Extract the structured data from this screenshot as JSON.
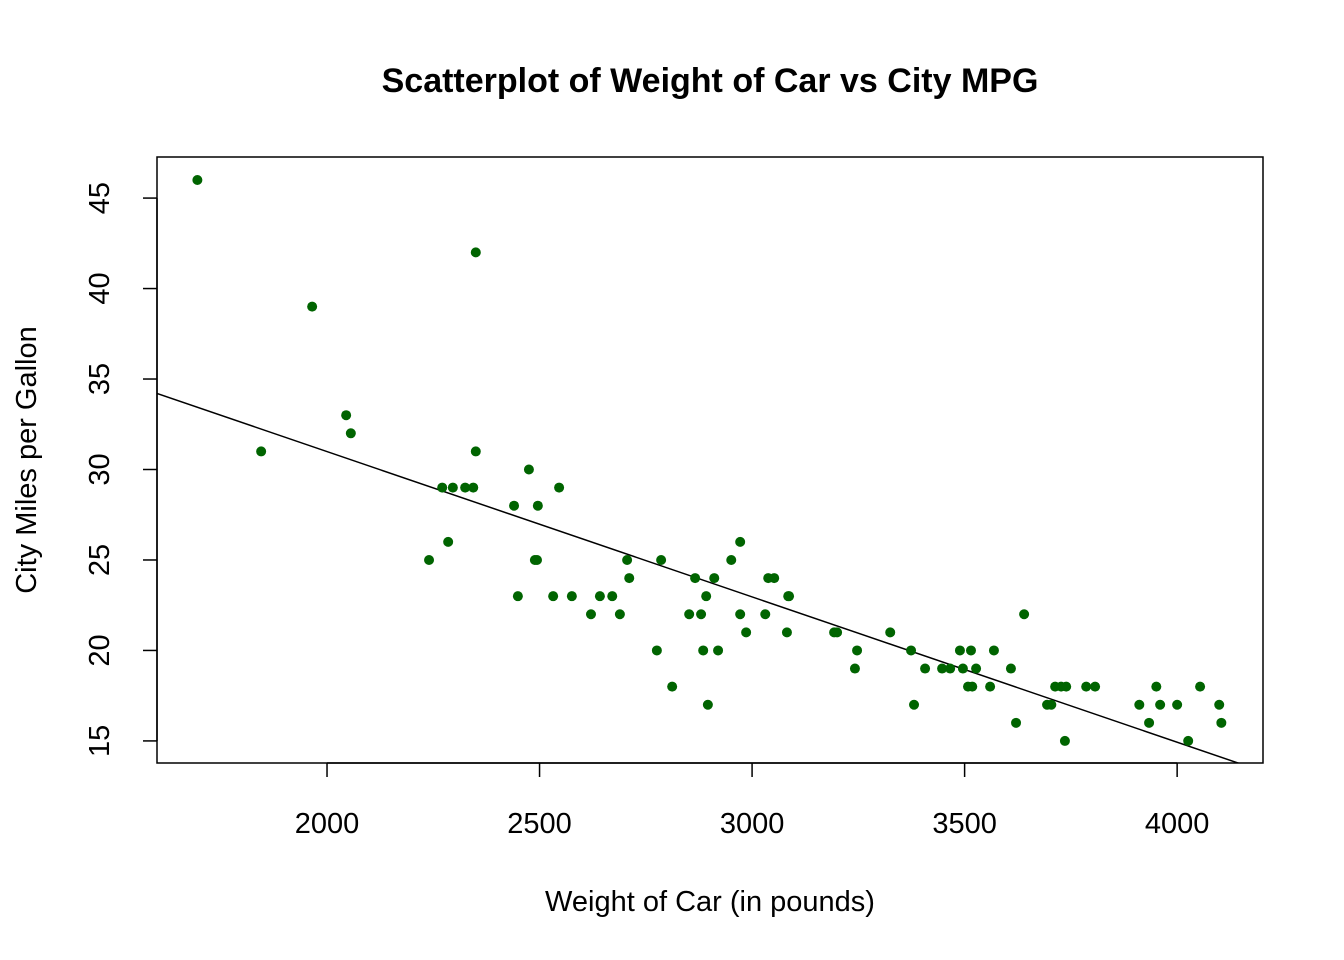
{
  "chart_data": {
    "type": "scatter",
    "title": "Scatterplot of Weight of Car vs City MPG",
    "xlabel": "Weight of Car (in pounds)",
    "ylabel": "City Miles per Gallon",
    "xlim": [
      1600,
      4202
    ],
    "ylim": [
      13.78,
      47.27
    ],
    "xticks": [
      2000,
      2500,
      3000,
      3500,
      4000
    ],
    "yticks": [
      15,
      20,
      25,
      30,
      35,
      40,
      45
    ],
    "grid": false,
    "point_color": "#006400",
    "line_color": "#000000",
    "regression_line": {
      "intercept": 47.05,
      "slope": -0.00803
    },
    "points": [
      [
        1695,
        46
      ],
      [
        1845,
        31
      ],
      [
        1965,
        39
      ],
      [
        2045,
        33
      ],
      [
        2056,
        32
      ],
      [
        2240,
        25
      ],
      [
        2271,
        29
      ],
      [
        2285,
        26
      ],
      [
        2296,
        29
      ],
      [
        2325,
        29
      ],
      [
        2344,
        29
      ],
      [
        2350,
        42
      ],
      [
        2350,
        31
      ],
      [
        2440,
        28
      ],
      [
        2449,
        23
      ],
      [
        2475,
        30
      ],
      [
        2489,
        25
      ],
      [
        2494,
        25
      ],
      [
        2496,
        28
      ],
      [
        2532,
        23
      ],
      [
        2546,
        29
      ],
      [
        2576,
        23
      ],
      [
        2621,
        22
      ],
      [
        2642,
        23
      ],
      [
        2671,
        23
      ],
      [
        2689,
        22
      ],
      [
        2706,
        25
      ],
      [
        2711,
        24
      ],
      [
        2776,
        20
      ],
      [
        2786,
        25
      ],
      [
        2812,
        18
      ],
      [
        2852,
        22
      ],
      [
        2866,
        24
      ],
      [
        2880,
        22
      ],
      [
        2885,
        20
      ],
      [
        2892,
        23
      ],
      [
        2896,
        17
      ],
      [
        2911,
        24
      ],
      [
        2920,
        20
      ],
      [
        2951,
        25
      ],
      [
        2972,
        26
      ],
      [
        2972,
        22
      ],
      [
        2986,
        21
      ],
      [
        3031,
        22
      ],
      [
        3038,
        24
      ],
      [
        3052,
        24
      ],
      [
        3082,
        21
      ],
      [
        3085,
        23
      ],
      [
        3087,
        23
      ],
      [
        3193,
        21
      ],
      [
        3200,
        21
      ],
      [
        3242,
        19
      ],
      [
        3247,
        20
      ],
      [
        3325,
        21
      ],
      [
        3374,
        20
      ],
      [
        3381,
        17
      ],
      [
        3407,
        19
      ],
      [
        3447,
        19
      ],
      [
        3466,
        19
      ],
      [
        3489,
        20
      ],
      [
        3496,
        19
      ],
      [
        3508,
        18
      ],
      [
        3515,
        20
      ],
      [
        3518,
        18
      ],
      [
        3527,
        19
      ],
      [
        3560,
        18
      ],
      [
        3569,
        20
      ],
      [
        3609,
        19
      ],
      [
        3621,
        16
      ],
      [
        3640,
        22
      ],
      [
        3694,
        17
      ],
      [
        3704,
        17
      ],
      [
        3713,
        18
      ],
      [
        3727,
        18
      ],
      [
        3736,
        15
      ],
      [
        3739,
        18
      ],
      [
        3786,
        18
      ],
      [
        3807,
        18
      ],
      [
        3911,
        17
      ],
      [
        3934,
        16
      ],
      [
        3951,
        18
      ],
      [
        3960,
        17
      ],
      [
        4000,
        17
      ],
      [
        4026,
        15
      ],
      [
        4054,
        18
      ],
      [
        4099,
        17
      ],
      [
        4104,
        16
      ]
    ]
  }
}
